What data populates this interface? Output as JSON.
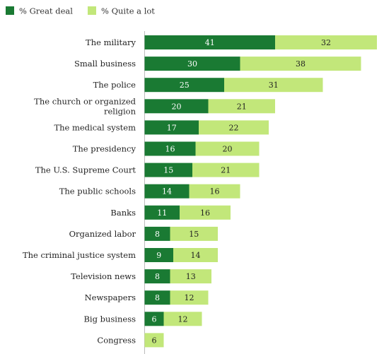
{
  "chart_data": {
    "type": "bar",
    "orientation": "horizontal",
    "stacked": true,
    "title": "",
    "xlabel": "",
    "ylabel": "",
    "xlim": [
      0,
      83
    ],
    "grid": false,
    "legend_position": "top-left",
    "categories": [
      "The military",
      "Small business",
      "The police",
      "The church or organized religion",
      "The medical system",
      "The presidency",
      "The U.S. Supreme Court",
      "The public schools",
      "Banks",
      "Organized labor",
      "The criminal justice system",
      "Television news",
      "Newspapers",
      "Big business",
      "Congress"
    ],
    "category_lines": [
      [
        "The military"
      ],
      [
        "Small business"
      ],
      [
        "The police"
      ],
      [
        "The church or organized",
        "religion"
      ],
      [
        "The medical system"
      ],
      [
        "The presidency"
      ],
      [
        "The U.S. Supreme Court"
      ],
      [
        "The public schools"
      ],
      [
        "Banks"
      ],
      [
        "Organized labor"
      ],
      [
        "The criminal justice system"
      ],
      [
        "Television news"
      ],
      [
        "Newspapers"
      ],
      [
        "Big business"
      ],
      [
        "Congress"
      ]
    ],
    "series": [
      {
        "name": "% Great deal",
        "color": "#1a7a33",
        "label_color": "#ffffff",
        "values": [
          41,
          30,
          25,
          20,
          17,
          16,
          15,
          14,
          11,
          8,
          9,
          8,
          8,
          6,
          null
        ]
      },
      {
        "name": "% Quite a lot",
        "color": "#c2e77a",
        "label_color": "#222222",
        "values": [
          32,
          38,
          31,
          21,
          22,
          20,
          21,
          16,
          16,
          15,
          14,
          13,
          12,
          12,
          6
        ]
      }
    ]
  }
}
